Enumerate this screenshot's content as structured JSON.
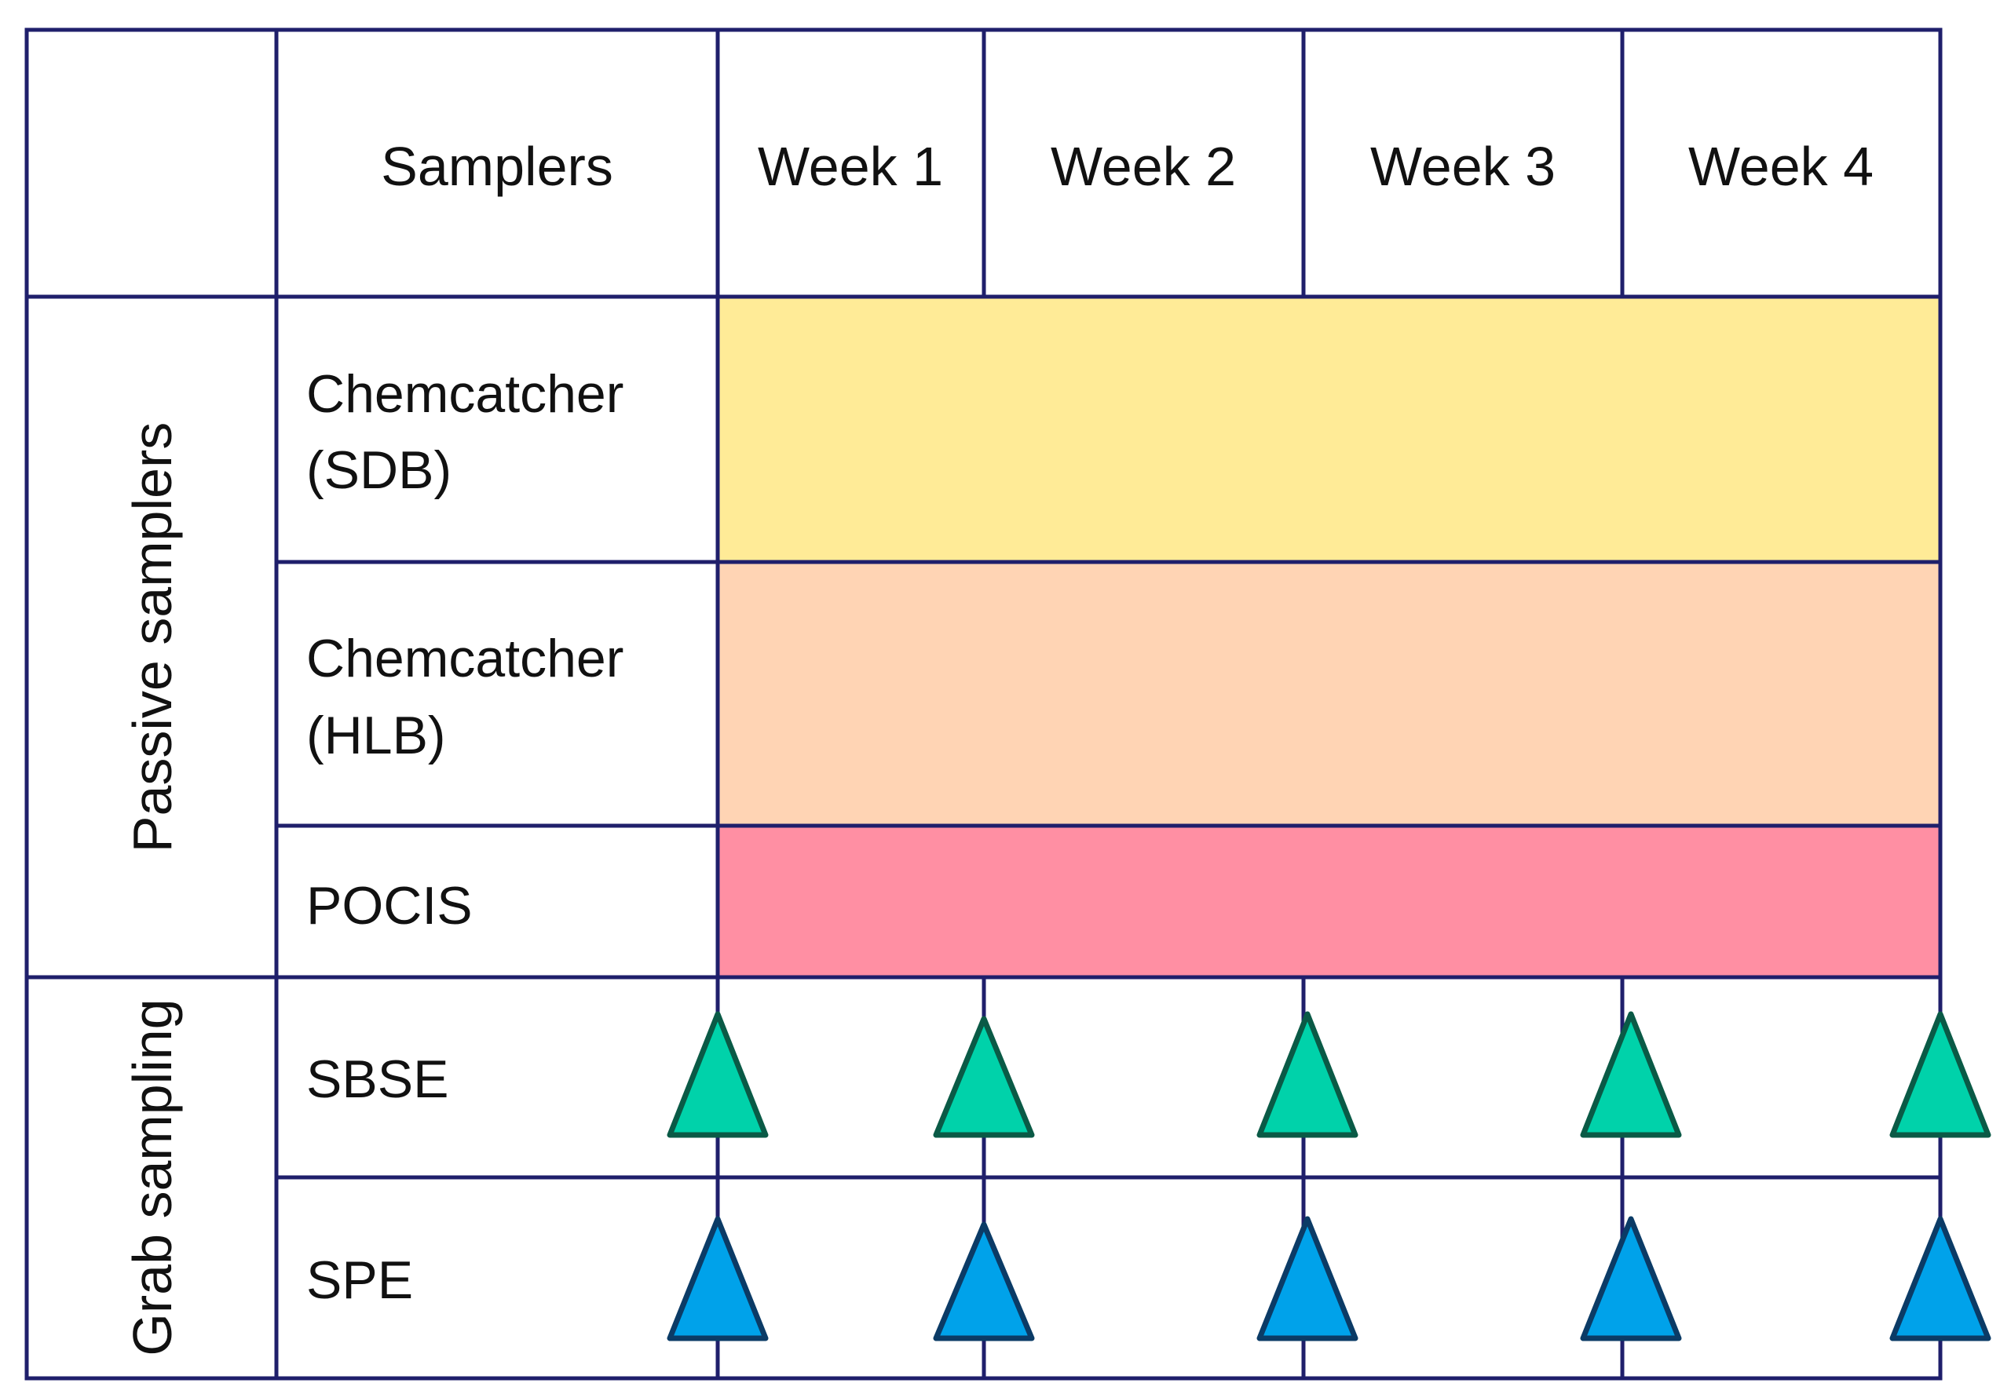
{
  "table": {
    "header": {
      "samplers_label": "Samplers",
      "weeks": [
        "Week 1",
        "Week 2",
        "Week 3",
        "Week 4"
      ]
    },
    "groups": [
      {
        "label": "Passive samplers",
        "rows": [
          {
            "lines": [
              "Chemcatcher",
              "(SDB)"
            ],
            "bar_color": "#FFEB97"
          },
          {
            "lines": [
              "Chemcatcher",
              "(HLB)"
            ],
            "bar_color": "#FFD4B4"
          },
          {
            "lines": [
              "POCIS"
            ],
            "bar_color": "#FF8FA3"
          }
        ]
      },
      {
        "label": "Grab sampling",
        "rows": [
          {
            "lines": [
              "SBSE"
            ],
            "marker_fill": "#00D2AA",
            "marker_stroke": "#0A5A46"
          },
          {
            "lines": [
              "SPE"
            ],
            "marker_fill": "#00A2EA",
            "marker_stroke": "#0B3B66"
          }
        ]
      }
    ]
  },
  "colors": {
    "grid": "#1F1F6B",
    "text": "#111111"
  }
}
